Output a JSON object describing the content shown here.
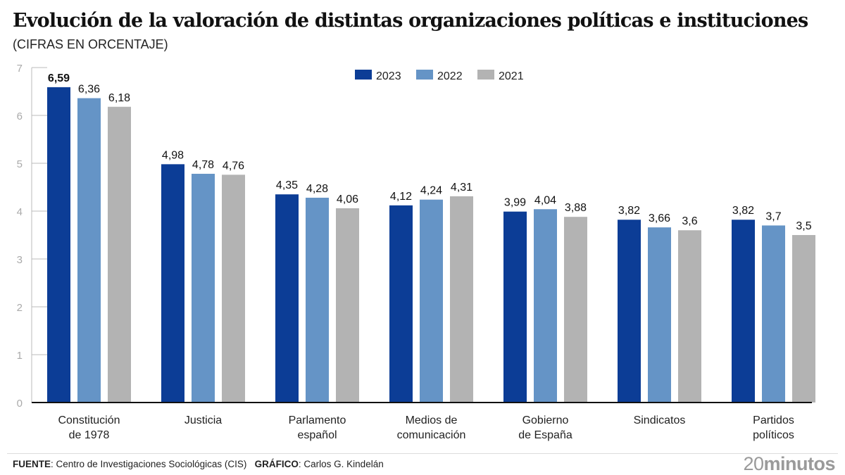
{
  "header": {
    "title": "Evolución de la valoración de distintas organizaciones políticas e instituciones",
    "subtitle": "(CIFRAS EN ORCENTAJE)"
  },
  "footer": {
    "source_label": "FUENTE",
    "source_text": ": Centro de Investigaciones Sociológicas (CIS)",
    "graphic_label": "GRÁFICO",
    "graphic_text": ": Carlos G. Kindelán",
    "brand_number": "20",
    "brand_word": "minutos"
  },
  "chart_data": {
    "type": "bar",
    "title": "Evolución de la valoración de distintas organizaciones políticas e instituciones",
    "subtitle": "(CIFRAS EN ORCENTAJE)",
    "xlabel": "",
    "ylabel": "",
    "ylim": [
      0,
      7
    ],
    "yticks": [
      0,
      1,
      2,
      3,
      4,
      5,
      6,
      7
    ],
    "grid": false,
    "legend_position": "top-center",
    "categories": [
      [
        "Constitución",
        "de 1978"
      ],
      [
        "Justicia"
      ],
      [
        "Parlamento",
        "español"
      ],
      [
        "Medios de",
        "comunicación"
      ],
      [
        "Gobierno",
        "de España"
      ],
      [
        "Sindicatos"
      ],
      [
        "Partidos",
        "políticos"
      ]
    ],
    "series": [
      {
        "name": "2023",
        "color": "#0c3d96",
        "values": [
          6.59,
          4.98,
          4.35,
          4.12,
          3.99,
          3.82,
          3.82
        ],
        "labels": [
          "6,59",
          "4,98",
          "4,35",
          "4,12",
          "3,99",
          "3,82",
          "3,82"
        ]
      },
      {
        "name": "2022",
        "color": "#6594c6",
        "values": [
          6.36,
          4.78,
          4.28,
          4.24,
          4.04,
          3.66,
          3.7
        ],
        "labels": [
          "6,36",
          "4,78",
          "4,28",
          "4,24",
          "4,04",
          "3,66",
          "3,7"
        ]
      },
      {
        "name": "2021",
        "color": "#b3b3b3",
        "values": [
          6.18,
          4.76,
          4.06,
          4.31,
          3.88,
          3.6,
          3.5
        ],
        "labels": [
          "6,18",
          "4,76",
          "4,06",
          "4,31",
          "3,88",
          "3,6",
          "3,5"
        ]
      }
    ],
    "highlight_label": {
      "series": 0,
      "index": 0
    }
  }
}
